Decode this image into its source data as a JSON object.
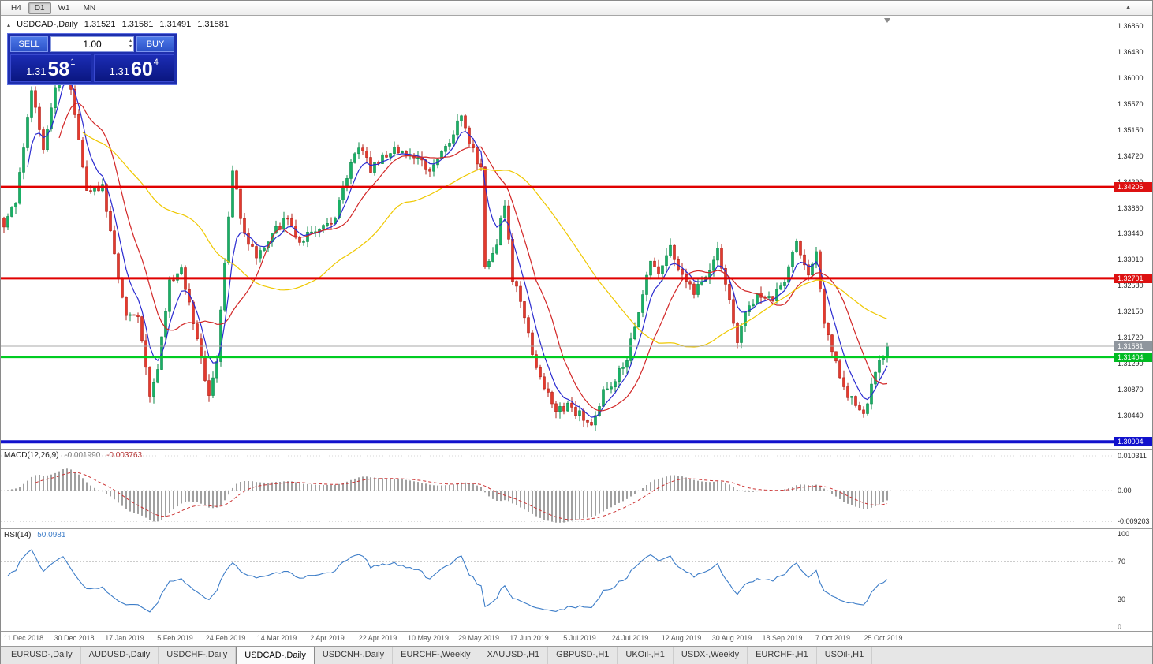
{
  "icons": {
    "collapse_arrow": "▴",
    "spinner_up": "▴",
    "spinner_down": "▾",
    "scroll_up": "▲"
  },
  "toolbar": {
    "timeframes": [
      "H4",
      "D1",
      "W1",
      "MN"
    ],
    "active": "D1"
  },
  "chart_header": {
    "symbol": "USDCAD-,Daily",
    "open": "1.31521",
    "high": "1.31581",
    "low": "1.31491",
    "close": "1.31581"
  },
  "trade_panel": {
    "sell_label": "SELL",
    "buy_label": "BUY",
    "volume": "1.00",
    "sell_price": {
      "main": "1.31",
      "big": "58",
      "sup": "1"
    },
    "buy_price": {
      "main": "1.31",
      "big": "60",
      "sup": "4"
    }
  },
  "price_axis": {
    "ticks": [
      "1.36860",
      "1.36430",
      "1.36000",
      "1.35570",
      "1.35150",
      "1.34720",
      "1.34290",
      "1.33860",
      "1.33440",
      "1.33010",
      "1.32580",
      "1.32150",
      "1.31720",
      "1.31290",
      "1.30870",
      "1.30440"
    ],
    "tags": [
      {
        "value": "1.34206",
        "bg": "#dd1111",
        "fg": "#ffffff"
      },
      {
        "value": "1.32701",
        "bg": "#dd1111",
        "fg": "#ffffff"
      },
      {
        "value": "1.31581",
        "bg": "#8f969e",
        "fg": "#ffffff"
      },
      {
        "value": "1.31404",
        "bg": "#00bb22",
        "fg": "#ffffff"
      },
      {
        "value": "1.30004",
        "bg": "#1111cc",
        "fg": "#ffffff"
      }
    ]
  },
  "hlines": [
    {
      "price": 1.34206,
      "color": "#e00000",
      "width": 3
    },
    {
      "price": 1.32701,
      "color": "#e00000",
      "width": 3
    },
    {
      "price": 1.31404,
      "color": "#00cc22",
      "width": 3
    },
    {
      "price": 1.30004,
      "color": "#1111cc",
      "width": 4
    }
  ],
  "current_price_line": {
    "price": 1.31581,
    "color": "#a8a8a8",
    "width": 1
  },
  "macd_panel": {
    "name": "MACD(12,26,9)",
    "value_main": "-0.001990",
    "value_signal": "-0.003763",
    "axis": [
      "0.010311",
      "0.00",
      "-0.009203"
    ]
  },
  "rsi_panel": {
    "name": "RSI(14)",
    "value": "50.0981",
    "axis": [
      "100",
      "70",
      "30",
      "0"
    ]
  },
  "date_axis": {
    "labels": [
      "11 Dec 2018",
      "30 Dec 2018",
      "17 Jan 2019",
      "5 Feb 2019",
      "24 Feb 2019",
      "14 Mar 2019",
      "2 Apr 2019",
      "22 Apr 2019",
      "10 May 2019",
      "29 May 2019",
      "17 Jun 2019",
      "5 Jul 2019",
      "24 Jul 2019",
      "12 Aug 2019",
      "30 Aug 2019",
      "18 Sep 2019",
      "7 Oct 2019",
      "25 Oct 2019"
    ]
  },
  "tabs": {
    "active_index": 3,
    "items": [
      "EURUSD-,Daily",
      "AUDUSD-,Daily",
      "USDCHF-,Daily",
      "USDCAD-,Daily",
      "USDCNH-,Daily",
      "EURCHF-,Weekly",
      "XAUUSD-,H1",
      "GBPUSD-,H1",
      "UKOil-,H1",
      "USDX-,Weekly",
      "EURCHF-,H1",
      "USOil-,H1"
    ]
  },
  "chart_data": {
    "type": "candlestick",
    "symbol": "USDCAD",
    "timeframe": "Daily",
    "candle_count": 225,
    "last_close": 1.31581,
    "price_axis_range": {
      "top": 1.3703,
      "bottom": 1.2989
    },
    "up_fill": "#19b066",
    "up_stroke": "#0c8a4a",
    "down_fill": "#e33a2e",
    "down_stroke": "#b2221a",
    "price_path": [
      [
        0,
        1.336
      ],
      [
        3,
        1.3395
      ],
      [
        7,
        1.358
      ],
      [
        10,
        1.348
      ],
      [
        15,
        1.3655
      ],
      [
        18,
        1.3545
      ],
      [
        21,
        1.3415
      ],
      [
        25,
        1.342
      ],
      [
        29,
        1.327
      ],
      [
        31,
        1.3215
      ],
      [
        34,
        1.3205
      ],
      [
        37,
        1.308
      ],
      [
        39,
        1.3125
      ],
      [
        42,
        1.3265
      ],
      [
        45,
        1.3285
      ],
      [
        48,
        1.32
      ],
      [
        52,
        1.3075
      ],
      [
        54,
        1.3135
      ],
      [
        58,
        1.3445
      ],
      [
        61,
        1.334
      ],
      [
        64,
        1.3305
      ],
      [
        68,
        1.3345
      ],
      [
        72,
        1.337
      ],
      [
        75,
        1.333
      ],
      [
        78,
        1.335
      ],
      [
        81,
        1.3355
      ],
      [
        84,
        1.337
      ],
      [
        87,
        1.344
      ],
      [
        90,
        1.349
      ],
      [
        93,
        1.345
      ],
      [
        97,
        1.3475
      ],
      [
        99,
        1.348
      ],
      [
        102,
        1.3475
      ],
      [
        105,
        1.347
      ],
      [
        108,
        1.345
      ],
      [
        111,
        1.348
      ],
      [
        114,
        1.351
      ],
      [
        116,
        1.3545
      ],
      [
        118,
        1.3495
      ],
      [
        121,
        1.345
      ],
      [
        122,
        1.329
      ],
      [
        125,
        1.333
      ],
      [
        127,
        1.3395
      ],
      [
        129,
        1.327
      ],
      [
        132,
        1.321
      ],
      [
        134,
        1.314
      ],
      [
        137,
        1.309
      ],
      [
        140,
        1.305
      ],
      [
        143,
        1.306
      ],
      [
        146,
        1.3045
      ],
      [
        149,
        1.303
      ],
      [
        152,
        1.308
      ],
      [
        155,
        1.3105
      ],
      [
        158,
        1.314
      ],
      [
        161,
        1.321
      ],
      [
        164,
        1.3305
      ],
      [
        166,
        1.328
      ],
      [
        169,
        1.332
      ],
      [
        172,
        1.327
      ],
      [
        175,
        1.325
      ],
      [
        178,
        1.327
      ],
      [
        181,
        1.3325
      ],
      [
        183,
        1.326
      ],
      [
        186,
        1.3165
      ],
      [
        189,
        1.323
      ],
      [
        192,
        1.3245
      ],
      [
        195,
        1.3235
      ],
      [
        198,
        1.327
      ],
      [
        201,
        1.333
      ],
      [
        204,
        1.328
      ],
      [
        206,
        1.331
      ],
      [
        208,
        1.32
      ],
      [
        211,
        1.313
      ],
      [
        213,
        1.309
      ],
      [
        216,
        1.306
      ],
      [
        218,
        1.3045
      ],
      [
        220,
        1.309
      ],
      [
        222,
        1.313
      ],
      [
        224,
        1.31581
      ]
    ],
    "ma_lines": [
      {
        "name": "ma-fast",
        "color": "#2a2ad0",
        "period": 6,
        "method": "ema"
      },
      {
        "name": "ma-medium",
        "color": "#d22626",
        "period": 14,
        "method": "sma"
      },
      {
        "name": "ma-slow",
        "color": "#efc800",
        "period": 45,
        "method": "sma"
      }
    ],
    "macd": {
      "fast": 12,
      "slow": 26,
      "signal_period": 9,
      "histogram_color": "#a0a0a0",
      "signal_color": "#cc3333",
      "axis_max": 0.010311,
      "axis_min": -0.009203
    },
    "rsi": {
      "period": 14,
      "color": "#3d7dc8",
      "levels": [
        70,
        30
      ]
    }
  }
}
